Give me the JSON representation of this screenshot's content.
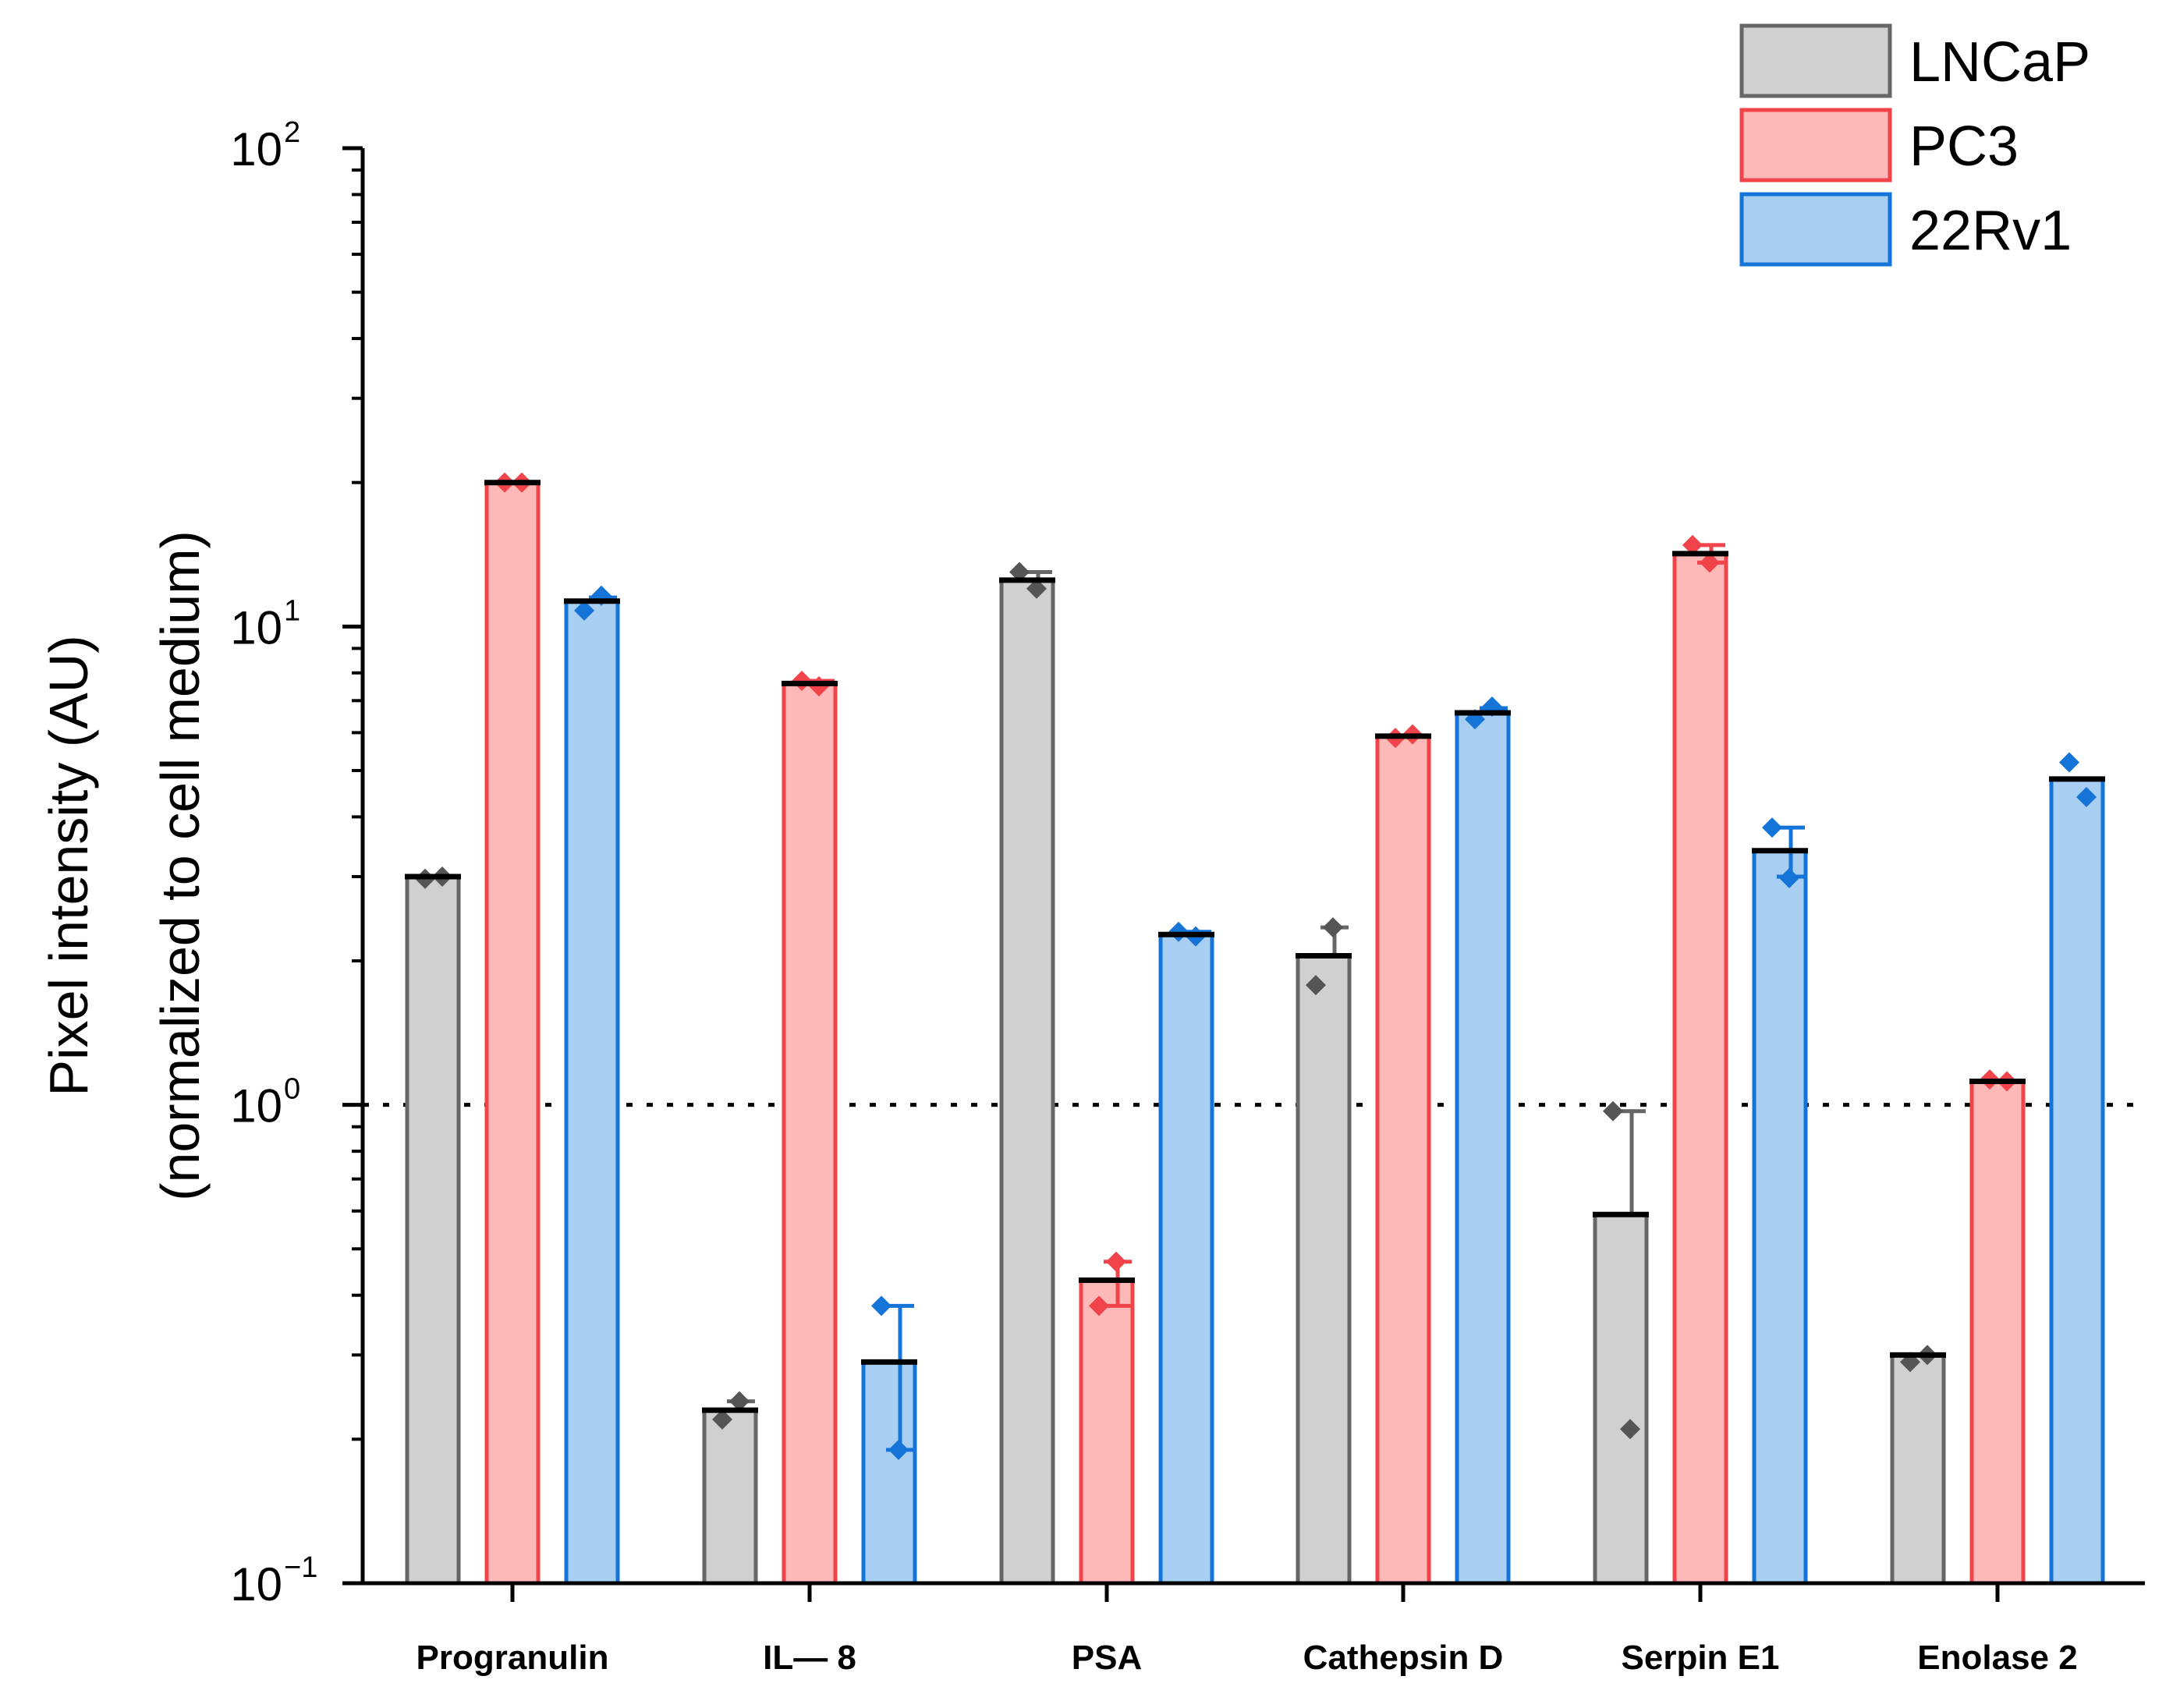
{
  "chart_data": {
    "type": "bar",
    "yscale": "log",
    "ylim": [
      0.1,
      100
    ],
    "ylabel_line1": "Pixel intensity (AU)",
    "ylabel_line2": "(normalized to cell medium)",
    "yticks": [
      {
        "value": 0.1,
        "base": "10",
        "exp": "−1"
      },
      {
        "value": 1,
        "base": "10",
        "exp": "0"
      },
      {
        "value": 10,
        "base": "10",
        "exp": "1"
      },
      {
        "value": 100,
        "base": "10",
        "exp": "2"
      }
    ],
    "reference_line": 1,
    "categories": [
      "Progranulin",
      "IL— 8",
      "PSA",
      "Cathepsin D",
      "Serpin E1",
      "Enolase 2"
    ],
    "series": [
      {
        "name": "LNCaP",
        "fill": "#d0d0d0",
        "stroke": "#666666",
        "marker": "#555555",
        "values": [
          3.0,
          0.23,
          12.5,
          2.05,
          0.59,
          0.3
        ],
        "err_high": [
          3.0,
          0.24,
          13.0,
          2.35,
          0.97,
          0.3
        ],
        "err_low": [
          3.0,
          0.23,
          12.5,
          2.05,
          0.59,
          0.3
        ],
        "points": [
          [
            2.97,
            3.0
          ],
          [
            0.22,
            0.24
          ],
          [
            13.0,
            12.0
          ],
          [
            1.78,
            2.35
          ],
          [
            0.97,
            0.21
          ],
          [
            0.29,
            0.3
          ]
        ]
      },
      {
        "name": "PC3",
        "fill": "#fdb8b8",
        "stroke": "#f0434a",
        "marker": "#f0434a",
        "values": [
          20.0,
          7.6,
          0.43,
          5.9,
          14.2,
          1.12
        ],
        "err_high": [
          20.0,
          7.7,
          0.47,
          5.9,
          14.8,
          1.12
        ],
        "err_low": [
          20.0,
          7.6,
          0.38,
          5.9,
          13.6,
          1.12
        ],
        "points": [
          [
            20.0,
            20.0
          ],
          [
            7.7,
            7.5
          ],
          [
            0.38,
            0.47
          ],
          [
            5.85,
            5.95
          ],
          [
            14.8,
            13.6
          ],
          [
            1.13,
            1.12
          ]
        ]
      },
      {
        "name": "22Rv1",
        "fill": "#a8cef2",
        "stroke": "#1574d8",
        "marker": "#1574d8",
        "values": [
          11.3,
          0.29,
          2.27,
          6.6,
          3.4,
          4.8
        ],
        "err_high": [
          11.5,
          0.38,
          2.3,
          6.75,
          3.8,
          4.8
        ],
        "err_low": [
          11.3,
          0.19,
          2.27,
          6.6,
          3.0,
          4.8
        ],
        "points": [
          [
            10.8,
            11.6
          ],
          [
            0.38,
            0.19
          ],
          [
            2.3,
            2.25
          ],
          [
            6.4,
            6.8
          ],
          [
            3.8,
            2.98
          ],
          [
            5.2,
            4.4
          ]
        ]
      }
    ],
    "legend": {
      "position": "top-right",
      "entries": [
        "LNCaP",
        "PC3",
        "22Rv1"
      ]
    }
  }
}
